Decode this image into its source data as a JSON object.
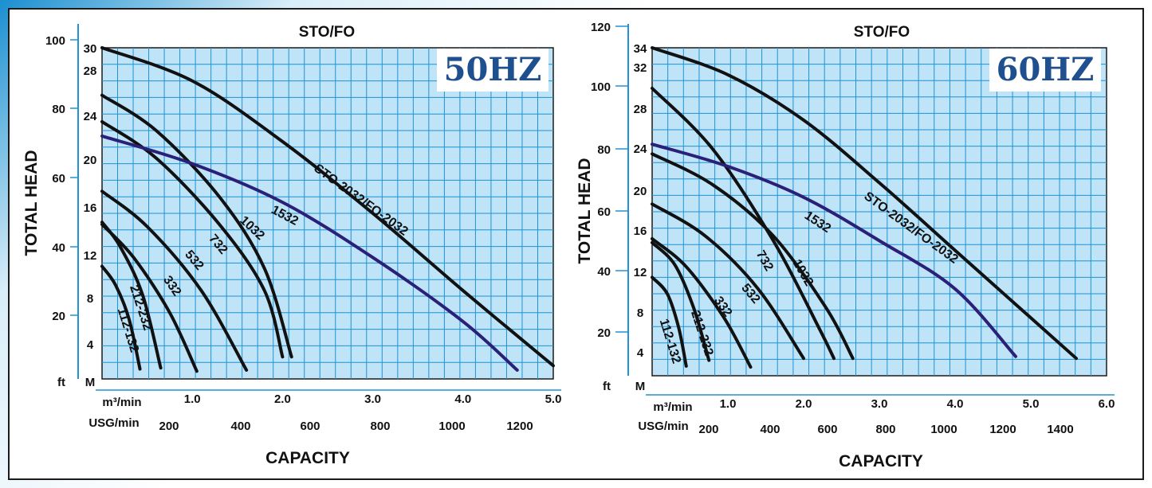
{
  "chart_data": [
    {
      "type": "line",
      "title": "STO/FO",
      "badge": "50HZ",
      "ylabel": "TOTAL HEAD",
      "xlabel": "CAPACITY",
      "grid": true,
      "head_ft_ticks": [
        "100",
        "80",
        "60",
        "40",
        "20"
      ],
      "head_ft_values": [
        100,
        80,
        60,
        40,
        20
      ],
      "head_ft_unit": "ft",
      "head_m_ticks": [
        "30",
        "28",
        "24",
        "20",
        "16",
        "12",
        "8",
        "4"
      ],
      "head_m_values": [
        30,
        28,
        24,
        20,
        16,
        12,
        8,
        4
      ],
      "head_m_unit": "M",
      "cap_m3_unit": "m³/min",
      "cap_m3_ticks": [
        "1.0",
        "2.0",
        "3.0",
        "4.0",
        "5.0"
      ],
      "cap_m3_values": [
        1.0,
        2.0,
        3.0,
        4.0,
        5.0
      ],
      "cap_usg_unit": "USG/min",
      "cap_usg_ticks": [
        "200",
        "400",
        "600",
        "800",
        "1000",
        "1200"
      ],
      "cap_usg_values": [
        200,
        400,
        600,
        800,
        1000,
        1200
      ],
      "xlim": [
        0,
        5.0
      ],
      "ylim": [
        0,
        30
      ],
      "series": [
        {
          "name": "112-132",
          "color": "#111111",
          "points": [
            [
              0.0,
              10.2
            ],
            [
              0.15,
              8.5
            ],
            [
              0.3,
              5.4
            ],
            [
              0.42,
              0.9
            ]
          ]
        },
        {
          "name": "212-232",
          "color": "#111111",
          "points": [
            [
              0.0,
              14.2
            ],
            [
              0.2,
              12.0
            ],
            [
              0.45,
              7.6
            ],
            [
              0.65,
              1.0
            ]
          ]
        },
        {
          "name": "332",
          "color": "#111111",
          "points": [
            [
              0.0,
              14.0
            ],
            [
              0.35,
              11.0
            ],
            [
              0.75,
              6.0
            ],
            [
              1.05,
              0.7
            ]
          ]
        },
        {
          "name": "532",
          "color": "#111111",
          "points": [
            [
              0.0,
              17.0
            ],
            [
              0.5,
              13.8
            ],
            [
              1.1,
              8.0
            ],
            [
              1.6,
              0.8
            ]
          ]
        },
        {
          "name": "732",
          "color": "#111111",
          "points": [
            [
              0.0,
              23.3
            ],
            [
              0.6,
              20.0
            ],
            [
              1.3,
              14.0
            ],
            [
              1.8,
              8.0
            ],
            [
              2.0,
              2.0
            ]
          ]
        },
        {
          "name": "1032",
          "color": "#111111",
          "points": [
            [
              0.0,
              25.7
            ],
            [
              0.6,
              22.5
            ],
            [
              1.3,
              16.5
            ],
            [
              1.8,
              10.0
            ],
            [
              2.1,
              2.0
            ]
          ]
        },
        {
          "name": "1532",
          "color": "#2a2078",
          "points": [
            [
              0.0,
              22.0
            ],
            [
              1.0,
              19.5
            ],
            [
              2.0,
              16.0
            ],
            [
              3.0,
              11.0
            ],
            [
              4.0,
              5.2
            ],
            [
              4.6,
              0.8
            ]
          ]
        },
        {
          "name": "STO-2032/FO-2032",
          "color": "#111111",
          "points": [
            [
              0.0,
              30.0
            ],
            [
              1.0,
              27.0
            ],
            [
              2.0,
              21.5
            ],
            [
              3.0,
              15.0
            ],
            [
              4.0,
              8.0
            ],
            [
              5.0,
              1.2
            ]
          ]
        }
      ]
    },
    {
      "type": "line",
      "title": "STO/FO",
      "badge": "60HZ",
      "ylabel": "TOTAL HEAD",
      "xlabel": "CAPACITY",
      "grid": true,
      "head_ft_ticks": [
        "120",
        "100",
        "80",
        "60",
        "40",
        "20"
      ],
      "head_ft_values": [
        120,
        100,
        80,
        60,
        40,
        20
      ],
      "head_ft_unit": "ft",
      "head_m_ticks": [
        "34",
        "32",
        "28",
        "24",
        "20",
        "16",
        "12",
        "8",
        "4"
      ],
      "head_m_values": [
        34,
        32,
        28,
        24,
        20,
        16,
        12,
        8,
        4
      ],
      "head_m_unit": "M",
      "cap_m3_unit": "m³/min",
      "cap_m3_ticks": [
        "1.0",
        "2.0",
        "3.0",
        "4.0",
        "5.0",
        "6.0"
      ],
      "cap_m3_values": [
        1.0,
        2.0,
        3.0,
        4.0,
        5.0,
        6.0
      ],
      "cap_usg_unit": "USG/min",
      "cap_usg_ticks": [
        "200",
        "400",
        "600",
        "800",
        "1000",
        "1200",
        "1400"
      ],
      "cap_usg_values": [
        200,
        400,
        600,
        800,
        1000,
        1200,
        1400
      ],
      "xlim": [
        0,
        6.0
      ],
      "ylim": [
        0,
        34
      ],
      "series": [
        {
          "name": "112-132",
          "color": "#111111",
          "points": [
            [
              0.0,
              10.2
            ],
            [
              0.2,
              8.5
            ],
            [
              0.35,
              5.0
            ],
            [
              0.45,
              1.0
            ]
          ]
        },
        {
          "name": "212-232",
          "color": "#111111",
          "points": [
            [
              0.0,
              13.8
            ],
            [
              0.3,
              11.5
            ],
            [
              0.55,
              7.0
            ],
            [
              0.75,
              1.6
            ]
          ]
        },
        {
          "name": "332",
          "color": "#111111",
          "points": [
            [
              0.0,
              14.2
            ],
            [
              0.45,
              11.3
            ],
            [
              0.95,
              6.0
            ],
            [
              1.3,
              0.9
            ]
          ]
        },
        {
          "name": "532",
          "color": "#111111",
          "points": [
            [
              0.0,
              17.8
            ],
            [
              0.7,
              14.5
            ],
            [
              1.4,
              9.0
            ],
            [
              2.0,
              1.8
            ]
          ]
        },
        {
          "name": "732",
          "color": "#111111",
          "points": [
            [
              0.0,
              29.8
            ],
            [
              0.8,
              23.5
            ],
            [
              1.6,
              14.0
            ],
            [
              2.2,
              5.0
            ],
            [
              2.4,
              1.8
            ]
          ]
        },
        {
          "name": "1032",
          "color": "#111111",
          "points": [
            [
              0.0,
              23.0
            ],
            [
              0.8,
              19.8
            ],
            [
              1.6,
              14.5
            ],
            [
              2.3,
              7.0
            ],
            [
              2.65,
              1.8
            ]
          ]
        },
        {
          "name": "1532",
          "color": "#2a2078",
          "points": [
            [
              0.0,
              24.0
            ],
            [
              1.0,
              21.7
            ],
            [
              2.0,
              18.5
            ],
            [
              3.0,
              14.0
            ],
            [
              4.0,
              9.0
            ],
            [
              4.8,
              2.0
            ]
          ]
        },
        {
          "name": "STO-2032/FO-2032",
          "color": "#111111",
          "points": [
            [
              0.0,
              34.0
            ],
            [
              1.0,
              31.2
            ],
            [
              2.0,
              26.5
            ],
            [
              3.0,
              20.0
            ],
            [
              4.0,
              13.0
            ],
            [
              5.0,
              6.0
            ],
            [
              5.6,
              1.8
            ]
          ]
        }
      ]
    }
  ]
}
